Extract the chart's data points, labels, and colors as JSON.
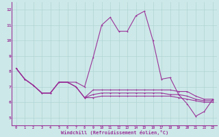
{
  "xlabel": "Windchill (Refroidissement éolien,°C)",
  "background_color": "#cde8e8",
  "line_color": "#993399",
  "x_hours": [
    0,
    1,
    2,
    3,
    4,
    5,
    6,
    7,
    8,
    9,
    10,
    11,
    12,
    13,
    14,
    15,
    16,
    17,
    18,
    19,
    20,
    21,
    22,
    23
  ],
  "line1": [
    8.2,
    7.5,
    7.1,
    6.6,
    6.6,
    7.3,
    7.3,
    7.3,
    7.0,
    8.9,
    11.0,
    11.5,
    10.6,
    10.6,
    11.6,
    11.9,
    10.0,
    7.5,
    7.6,
    6.5,
    5.9,
    5.1,
    5.4,
    6.2
  ],
  "line2": [
    8.2,
    7.5,
    7.1,
    6.6,
    6.6,
    7.3,
    7.3,
    7.0,
    6.3,
    6.8,
    6.8,
    6.8,
    6.8,
    6.8,
    6.8,
    6.8,
    6.8,
    6.8,
    6.8,
    6.7,
    6.7,
    6.4,
    6.2,
    6.2
  ],
  "line3": [
    8.2,
    7.5,
    7.1,
    6.6,
    6.6,
    7.3,
    7.3,
    7.0,
    6.3,
    6.5,
    6.6,
    6.6,
    6.6,
    6.6,
    6.6,
    6.6,
    6.6,
    6.6,
    6.5,
    6.5,
    6.4,
    6.2,
    6.1,
    6.1
  ],
  "line4": [
    8.2,
    7.5,
    7.1,
    6.6,
    6.6,
    7.3,
    7.3,
    7.0,
    6.3,
    6.3,
    6.4,
    6.4,
    6.4,
    6.4,
    6.4,
    6.4,
    6.4,
    6.4,
    6.4,
    6.3,
    6.2,
    6.1,
    6.0,
    6.0
  ],
  "ylim": [
    4.5,
    12.5
  ],
  "yticks": [
    5,
    6,
    7,
    8,
    9,
    10,
    11,
    12
  ],
  "xlim": [
    -0.5,
    23.5
  ],
  "grid_color": "#b0d4d4",
  "spine_color": "#993399"
}
